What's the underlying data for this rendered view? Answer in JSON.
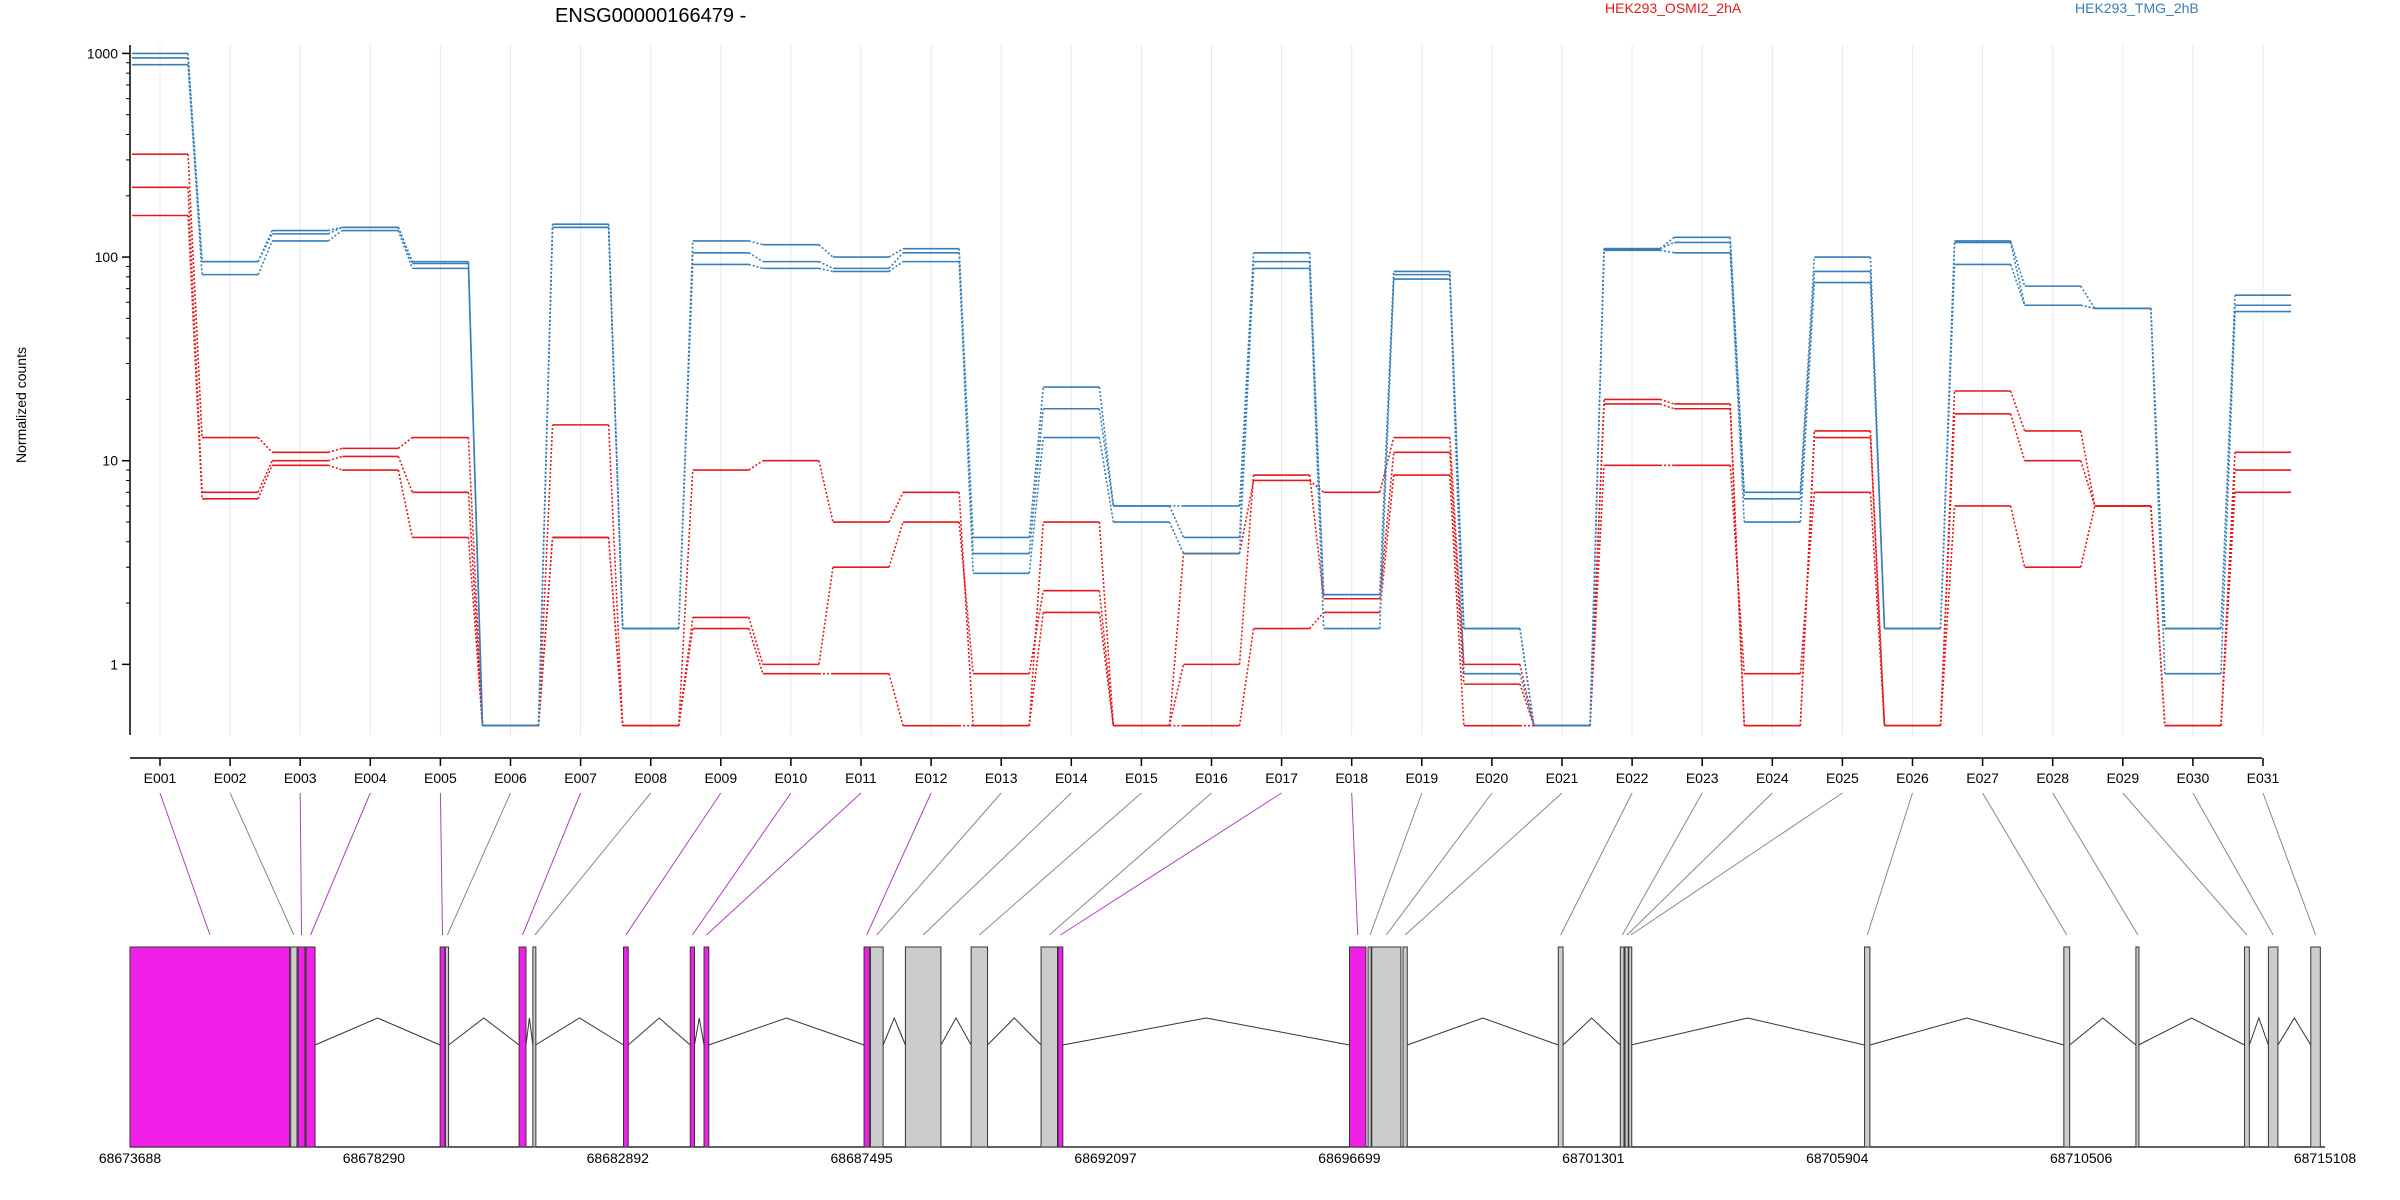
{
  "chart_data": {
    "type": "line",
    "title": "ENSG00000166479 -",
    "ylabel": "Normalized counts",
    "y_scale": "log",
    "ylim": [
      0.45,
      1100
    ],
    "y_ticks": [
      {
        "value": 1,
        "label": "1"
      },
      {
        "value": 10,
        "label": "10"
      },
      {
        "value": 100,
        "label": "100"
      },
      {
        "value": 1000,
        "label": "1000"
      }
    ],
    "categories": [
      "E001",
      "E002",
      "E003",
      "E004",
      "E005",
      "E006",
      "E007",
      "E008",
      "E009",
      "E010",
      "E011",
      "E012",
      "E013",
      "E014",
      "E015",
      "E016",
      "E017",
      "E018",
      "E019",
      "E020",
      "E021",
      "E022",
      "E023",
      "E024",
      "E025",
      "E026",
      "E027",
      "E028",
      "E029",
      "E030",
      "E031"
    ],
    "legend": [
      {
        "name": "HEK293_OSMI2_2hA",
        "color": "#e41a1c"
      },
      {
        "name": "HEK293_TMG_2hB",
        "color": "#377eb8"
      }
    ],
    "grid": "vertical",
    "series": [
      {
        "group": "HEK293_OSMI2_2hA",
        "color": "#e41a1c",
        "values": [
          320,
          13,
          11,
          11.5,
          13,
          0.5,
          15,
          0.5,
          9,
          10,
          5,
          7,
          0.5,
          5,
          0.5,
          3.5,
          8,
          7,
          13,
          1,
          0.5,
          20,
          19,
          0.5,
          14,
          0.5,
          22,
          14,
          6,
          0.5,
          11
        ]
      },
      {
        "group": "HEK293_OSMI2_2hA",
        "color": "#e41a1c",
        "values": [
          220,
          7,
          10,
          10.5,
          7,
          0.5,
          4.2,
          0.5,
          1.7,
          1,
          3,
          5,
          0.9,
          2.3,
          0.5,
          1,
          8.5,
          2.1,
          11,
          0.8,
          0.5,
          19,
          18,
          0.5,
          13,
          0.5,
          17,
          10,
          6,
          0.5,
          9
        ]
      },
      {
        "group": "HEK293_OSMI2_2hA",
        "color": "#e41a1c",
        "values": [
          160,
          6.5,
          9.5,
          9,
          4.2,
          0.5,
          4.2,
          0.5,
          1.5,
          0.9,
          0.9,
          0.5,
          0.5,
          1.8,
          0.5,
          0.5,
          1.5,
          1.8,
          8.5,
          0.5,
          0.5,
          9.5,
          9.5,
          0.9,
          7,
          0.5,
          6,
          3,
          6,
          0.5,
          7
        ]
      },
      {
        "group": "HEK293_TMG_2hB",
        "color": "#377eb8",
        "values": [
          1000,
          95,
          135,
          140,
          95,
          0.5,
          145,
          1.5,
          120,
          115,
          100,
          110,
          4.2,
          23,
          6,
          6,
          105,
          2.2,
          85,
          1.5,
          0.5,
          110,
          125,
          7,
          100,
          1.5,
          120,
          72,
          56,
          1.5,
          65
        ]
      },
      {
        "group": "HEK293_TMG_2hB",
        "color": "#377eb8",
        "values": [
          950,
          95,
          130,
          140,
          93,
          0.5,
          140,
          1.5,
          105,
          95,
          88,
          105,
          3.5,
          18,
          6,
          4.2,
          95,
          2.2,
          82,
          1.5,
          0.5,
          110,
          118,
          6.5,
          85,
          1.5,
          118,
          58,
          56,
          1.5,
          58
        ]
      },
      {
        "group": "HEK293_TMG_2hB",
        "color": "#377eb8",
        "values": [
          880,
          82,
          120,
          135,
          88,
          0.5,
          140,
          1.5,
          92,
          88,
          85,
          95,
          2.8,
          13,
          5,
          3.5,
          88,
          1.5,
          78,
          0.9,
          0.5,
          108,
          105,
          5,
          75,
          1.5,
          92,
          58,
          56,
          0.9,
          54
        ]
      }
    ],
    "genomic_axis": {
      "range": [
        68673688,
        68715108
      ],
      "ticks": [
        "68673688",
        "68678290",
        "68682892",
        "68687495",
        "68692097",
        "68696699",
        "68701301",
        "68705904",
        "68710506",
        "68715108"
      ],
      "exons": [
        {
          "id": "E001",
          "start": 68673688,
          "end": 68676700,
          "highlight": true
        },
        {
          "id": "E002",
          "start": 68676720,
          "end": 68676840,
          "highlight": false
        },
        {
          "id": "E003",
          "start": 68676860,
          "end": 68676990,
          "highlight": true
        },
        {
          "id": "E004",
          "start": 68677010,
          "end": 68677180,
          "highlight": true
        },
        {
          "id": "E005",
          "start": 68679540,
          "end": 68679630,
          "highlight": true
        },
        {
          "id": "E006",
          "start": 68679640,
          "end": 68679700,
          "highlight": false
        },
        {
          "id": "E007",
          "start": 68681030,
          "end": 68681160,
          "highlight": true
        },
        {
          "id": "E008",
          "start": 68681290,
          "end": 68681340,
          "highlight": false
        },
        {
          "id": "E009",
          "start": 68683000,
          "end": 68683090,
          "highlight": true
        },
        {
          "id": "E010",
          "start": 68684260,
          "end": 68684340,
          "highlight": true
        },
        {
          "id": "E011",
          "start": 68684520,
          "end": 68684610,
          "highlight": true
        },
        {
          "id": "E012",
          "start": 68687540,
          "end": 68687640,
          "highlight": true
        },
        {
          "id": "E013",
          "start": 68687660,
          "end": 68687900,
          "highlight": false
        },
        {
          "id": "E014",
          "start": 68688320,
          "end": 68688990,
          "highlight": false
        },
        {
          "id": "E015",
          "start": 68689560,
          "end": 68689870,
          "highlight": false
        },
        {
          "id": "E016",
          "start": 68690880,
          "end": 68691190,
          "highlight": false
        },
        {
          "id": "E017",
          "start": 68691200,
          "end": 68691290,
          "highlight": true
        },
        {
          "id": "E018",
          "start": 68696700,
          "end": 68697010,
          "highlight": true
        },
        {
          "id": "E019",
          "start": 68697050,
          "end": 68697110,
          "highlight": false
        },
        {
          "id": "E020",
          "start": 68697120,
          "end": 68697670,
          "highlight": false
        },
        {
          "id": "E021",
          "start": 68697710,
          "end": 68697790,
          "highlight": false
        },
        {
          "id": "E022",
          "start": 68700640,
          "end": 68700730,
          "highlight": false
        },
        {
          "id": "E023",
          "start": 68701810,
          "end": 68701880,
          "highlight": false
        },
        {
          "id": "E024",
          "start": 68701900,
          "end": 68701960,
          "highlight": false
        },
        {
          "id": "E025",
          "start": 68701970,
          "end": 68702010,
          "highlight": false
        },
        {
          "id": "E026",
          "start": 68706420,
          "end": 68706520,
          "highlight": false
        },
        {
          "id": "E027",
          "start": 68710180,
          "end": 68710290,
          "highlight": false
        },
        {
          "id": "E028",
          "start": 68711540,
          "end": 68711590,
          "highlight": false
        },
        {
          "id": "E029",
          "start": 68713590,
          "end": 68713680,
          "highlight": false
        },
        {
          "id": "E030",
          "start": 68714040,
          "end": 68714220,
          "highlight": false
        },
        {
          "id": "E031",
          "start": 68714840,
          "end": 68715020,
          "highlight": false
        }
      ]
    }
  }
}
